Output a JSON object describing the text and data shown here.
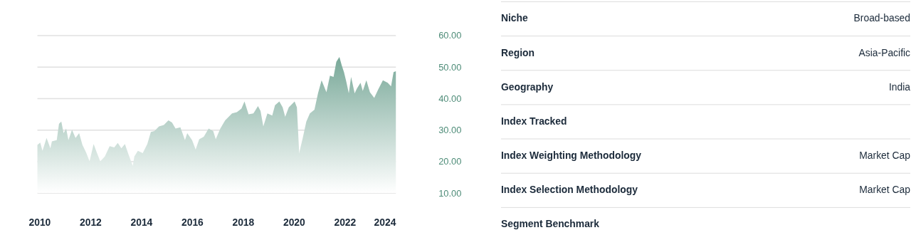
{
  "chart_data": [
    {
      "type": "area",
      "color": "#78a898",
      "x": [
        2009.92,
        2010.03,
        2010.12,
        2010.28,
        2010.43,
        2010.49,
        2010.68,
        2010.77,
        2010.86,
        2010.95,
        2011.05,
        2011.14,
        2011.28,
        2011.42,
        2011.56,
        2011.69,
        2011.83,
        2011.97,
        2012.13,
        2012.25,
        2012.39,
        2012.57,
        2012.76,
        2012.94,
        2013.08,
        2013.22,
        2013.36,
        2013.5,
        2013.67,
        2013.73,
        2013.87,
        2014.06,
        2014.24,
        2014.38,
        2014.52,
        2014.7,
        2014.89,
        2015.07,
        2015.21,
        2015.35,
        2015.54,
        2015.72,
        2015.81,
        2016.0,
        2016.14,
        2016.28,
        2016.46,
        2016.65,
        2016.83,
        2016.93,
        2017.11,
        2017.3,
        2017.57,
        2017.76,
        2017.94,
        2018.06,
        2018.22,
        2018.41,
        2018.59,
        2018.69,
        2018.8,
        2018.96,
        2019.15,
        2019.26,
        2019.43,
        2019.56,
        2019.66,
        2019.8,
        2020.03,
        2020.12,
        2020.21,
        2020.35,
        2020.49,
        2020.63,
        2020.81,
        2020.95,
        2021.09,
        2021.28,
        2021.42,
        2021.56,
        2021.67,
        2021.79,
        2021.88,
        2021.97,
        2022.06,
        2022.16,
        2022.25,
        2022.39,
        2022.48,
        2022.62,
        2022.71,
        2022.85,
        2022.99,
        2023.16,
        2023.31,
        2023.5,
        2023.69,
        2023.82,
        2023.92,
        2024.01
      ],
      "values": [
        25.3,
        26.0,
        23.4,
        27.5,
        24.2,
        26.4,
        26.8,
        32.0,
        32.7,
        29.0,
        30.5,
        26.8,
        30.1,
        27.5,
        29.0,
        25.3,
        23.0,
        20.1,
        25.6,
        23.0,
        20.1,
        21.6,
        24.9,
        24.5,
        25.9,
        24.2,
        25.6,
        22.3,
        18.6,
        21.6,
        23.4,
        22.7,
        25.6,
        29.4,
        29.7,
        31.2,
        31.6,
        33.1,
        32.4,
        30.5,
        30.9,
        26.8,
        29.0,
        26.8,
        23.8,
        27.1,
        27.9,
        30.5,
        29.7,
        27.1,
        30.5,
        33.1,
        35.3,
        35.7,
        36.8,
        39.1,
        35.0,
        35.3,
        37.6,
        36.1,
        31.2,
        35.3,
        34.6,
        37.9,
        39.1,
        37.2,
        34.2,
        37.2,
        39.1,
        37.2,
        22.7,
        27.5,
        32.7,
        35.3,
        36.5,
        41.7,
        45.8,
        42.0,
        47.3,
        46.9,
        51.7,
        53.2,
        50.6,
        48.4,
        45.4,
        41.7,
        46.9,
        41.7,
        43.2,
        45.0,
        42.4,
        45.8,
        42.0,
        40.2,
        42.8,
        45.8,
        45.0,
        43.9,
        48.4,
        48.7
      ],
      "xlim": [
        2009.92,
        2024.01
      ],
      "xticks": [
        2010,
        2012,
        2014,
        2016,
        2018,
        2020,
        2022,
        2024
      ],
      "ylim": [
        10,
        60
      ],
      "yticks": [
        {
          "value": 10,
          "label": "10.00"
        },
        {
          "value": 20,
          "label": "20.00"
        },
        {
          "value": 30,
          "label": "30.00"
        },
        {
          "value": 40,
          "label": "40.00"
        },
        {
          "value": 50,
          "label": "50.00"
        },
        {
          "value": 60,
          "label": "60.00"
        }
      ],
      "grid": "y"
    },
    {
      "type": "other",
      "categories": [
        "Niche",
        "Region",
        "Geography",
        "Index Tracked",
        "Index Weighting Methodology",
        "Index Selection Methodology",
        "Segment Benchmark"
      ],
      "value_labels": [
        "Broad-based",
        "Asia-Pacific",
        "India",
        null,
        "Market Cap",
        "Market Cap",
        null
      ]
    }
  ]
}
